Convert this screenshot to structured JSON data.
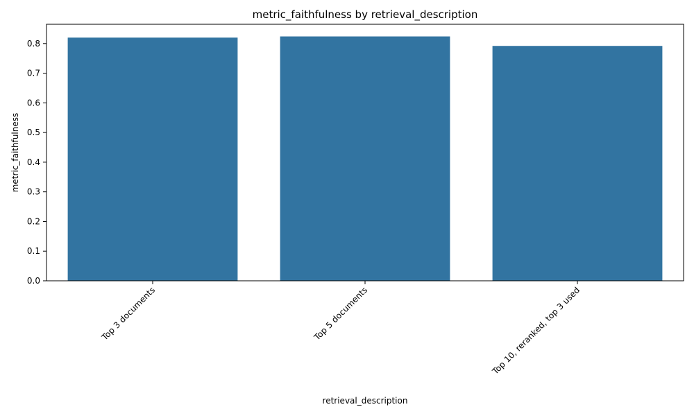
{
  "chart_data": {
    "type": "bar",
    "title": "metric_faithfulness by retrieval_description",
    "xlabel": "retrieval_description",
    "ylabel": "metric_faithfulness",
    "categories": [
      "Top 3 documents",
      "Top 5 documents",
      "Top 10, reranked, top 3 used"
    ],
    "values": [
      0.82,
      0.824,
      0.792
    ],
    "ylim": [
      0,
      0.865
    ],
    "yticks": [
      "0.0",
      "0.1",
      "0.2",
      "0.3",
      "0.4",
      "0.5",
      "0.6",
      "0.7",
      "0.8"
    ],
    "grid": false,
    "legend": "none",
    "bar_color": "#3274a1"
  }
}
